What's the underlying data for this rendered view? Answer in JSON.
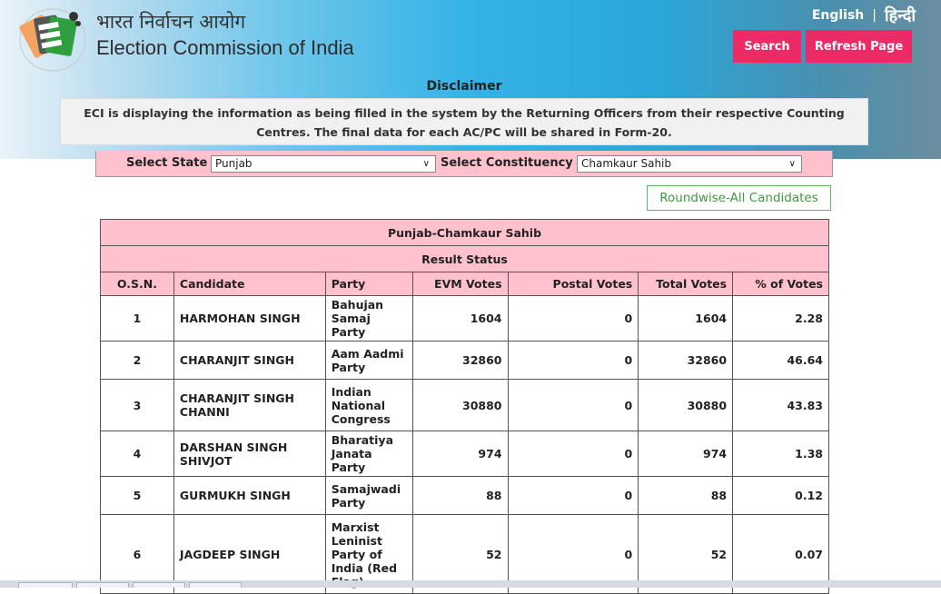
{
  "header": {
    "title_hindi": "भारत निर्वाचन आयोग",
    "title_english": "Election Commission of India",
    "logo_icon": "eci-ballot-logo-icon",
    "lang_english": "English",
    "lang_separator": "|",
    "lang_hindi": "हिन्दी",
    "search_label": "Search",
    "refresh_label": "Refresh Page",
    "accent_color": "#ec2a66"
  },
  "disclaimer": {
    "title": "Disclaimer",
    "text": "ECI is displaying the information as being filled in the system by the Returning Officers from their respective Counting Centres. The final data for each AC/PC will be shared in Form-20."
  },
  "selectors": {
    "state_label": "Select State",
    "state_value": "Punjab",
    "constituency_label": "Select Constituency",
    "constituency_value": "Chamkaur Sahib"
  },
  "roundwise_label": "Roundwise-All Candidates",
  "table": {
    "title": "Punjab-Chamkaur Sahib",
    "subtitle": "Result Status",
    "columns": [
      "O.S.N.",
      "Candidate",
      "Party",
      "EVM Votes",
      "Postal Votes",
      "Total Votes",
      "% of Votes"
    ],
    "rows": [
      {
        "osn": "1",
        "candidate": "HARMOHAN SINGH",
        "party": "Bahujan Samaj Party",
        "evm": "1604",
        "postal": "0",
        "total": "1604",
        "pct": "2.28"
      },
      {
        "osn": "2",
        "candidate": "CHARANJIT SINGH",
        "party": "Aam Aadmi Party",
        "evm": "32860",
        "postal": "0",
        "total": "32860",
        "pct": "46.64"
      },
      {
        "osn": "3",
        "candidate": "CHARANJIT SINGH CHANNI",
        "party": "Indian National Congress",
        "evm": "30880",
        "postal": "0",
        "total": "30880",
        "pct": "43.83"
      },
      {
        "osn": "4",
        "candidate": "DARSHAN SINGH SHIVJOT",
        "party": "Bharatiya Janata Party",
        "evm": "974",
        "postal": "0",
        "total": "974",
        "pct": "1.38"
      },
      {
        "osn": "5",
        "candidate": "GURMUKH SINGH",
        "party": "Samajwadi Party",
        "evm": "88",
        "postal": "0",
        "total": "88",
        "pct": "0.12"
      },
      {
        "osn": "6",
        "candidate": "JAGDEEP SINGH",
        "party": "Marxist Leninist Party of India (Red Flag)",
        "evm": "52",
        "postal": "0",
        "total": "52",
        "pct": "0.07"
      }
    ]
  }
}
